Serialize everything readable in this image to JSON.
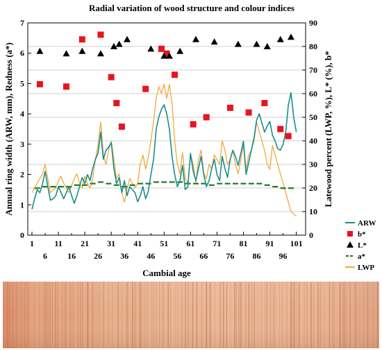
{
  "chart_data": {
    "type": "line",
    "title": "Radial variation of wood structure and colour indices",
    "xlabel": "Cambial age",
    "ylabel_left": "Annual ring width (ARW, mm), Redness (a*)",
    "ylabel_right": "Latewood percent (LWP, %), L* (%), b*",
    "xlim": [
      1,
      104
    ],
    "ylim_left": [
      0,
      7
    ],
    "ylim_right": [
      0,
      90
    ],
    "x_ticks_top": [
      1,
      11,
      21,
      31,
      41,
      51,
      61,
      71,
      81,
      91,
      101
    ],
    "x_ticks_bottom": [
      6,
      16,
      26,
      36,
      46,
      56,
      66,
      76,
      86,
      96
    ],
    "y_ticks_left": [
      0,
      1,
      2,
      3,
      4,
      5,
      6,
      7
    ],
    "y_ticks_right": [
      0,
      10,
      20,
      30,
      40,
      50,
      60,
      70,
      80,
      90
    ],
    "grid": "horizontal",
    "legend_position": "right",
    "series": [
      {
        "name": "ARW",
        "axis": "left",
        "style": "line",
        "color": "#1a8c8c",
        "x": [
          1,
          2,
          3,
          4,
          5,
          6,
          7,
          8,
          9,
          10,
          11,
          12,
          13,
          14,
          15,
          16,
          17,
          18,
          19,
          20,
          21,
          22,
          23,
          24,
          25,
          26,
          27,
          28,
          29,
          30,
          31,
          32,
          33,
          34,
          35,
          36,
          37,
          38,
          39,
          40,
          41,
          42,
          43,
          44,
          45,
          46,
          47,
          48,
          49,
          50,
          51,
          52,
          53,
          54,
          55,
          56,
          57,
          58,
          59,
          60,
          61,
          62,
          63,
          64,
          65,
          66,
          67,
          68,
          69,
          70,
          71,
          72,
          73,
          74,
          75,
          76,
          77,
          78,
          79,
          80,
          81,
          82,
          83,
          84,
          85,
          86,
          87,
          88,
          89,
          90,
          91,
          92,
          93,
          94,
          95,
          96,
          97,
          98,
          99,
          100,
          101
        ],
        "values": [
          0.85,
          1.2,
          1.5,
          1.4,
          1.7,
          2.1,
          1.6,
          1.15,
          1.2,
          1.3,
          1.6,
          1.4,
          1.2,
          1.4,
          1.6,
          1.3,
          1.05,
          1.3,
          1.6,
          1.9,
          1.7,
          2.0,
          1.8,
          2.2,
          2.5,
          2.7,
          3.4,
          2.5,
          2.8,
          2.9,
          3.05,
          2.2,
          1.7,
          1.9,
          1.4,
          1.8,
          1.3,
          1.6,
          1.5,
          1.4,
          1.1,
          1.3,
          1.6,
          1.2,
          1.45,
          2.0,
          2.5,
          3.5,
          3.9,
          4.15,
          4.3,
          4.0,
          3.5,
          2.6,
          2.0,
          1.6,
          1.8,
          2.3,
          1.5,
          1.6,
          2.7,
          2.1,
          1.8,
          2.2,
          2.6,
          2.0,
          1.6,
          1.8,
          2.2,
          2.5,
          2.0,
          1.8,
          2.6,
          2.2,
          1.9,
          2.5,
          2.8,
          2.6,
          2.3,
          2.7,
          3.1,
          2.0,
          2.4,
          2.8,
          3.2,
          3.8,
          4.0,
          3.7,
          3.4,
          3.6,
          3.75,
          3.3,
          3.1,
          2.85,
          2.8,
          3.0,
          3.4,
          4.3,
          4.7,
          3.9,
          3.4
        ]
      },
      {
        "name": "b*",
        "axis": "right",
        "style": "square",
        "color": "#e8141e",
        "x": [
          4,
          14,
          20,
          27,
          31,
          33,
          35,
          44,
          50,
          52,
          55,
          62,
          67,
          76,
          83,
          89,
          95,
          98
        ],
        "values": [
          64,
          63,
          83,
          85,
          67,
          56,
          46,
          62,
          79,
          77,
          68,
          47,
          50,
          54,
          52,
          56,
          45,
          42
        ]
      },
      {
        "name": "L*",
        "axis": "right",
        "style": "triangle",
        "color": "#000000",
        "x": [
          4,
          14,
          20,
          27,
          32,
          34,
          37,
          46,
          51,
          53,
          57,
          63,
          70,
          79,
          86,
          90,
          95,
          99
        ],
        "values": [
          78,
          77,
          78,
          77,
          80,
          81,
          83,
          79,
          76,
          76,
          78,
          83,
          82,
          81,
          81,
          80,
          83,
          84
        ]
      },
      {
        "name": "a*",
        "axis": "left",
        "style": "dash",
        "color": "#1e7a1e",
        "x": [
          3,
          6,
          9,
          12,
          15,
          18,
          21,
          24,
          27,
          30,
          33,
          36,
          39,
          42,
          45,
          48,
          51,
          54,
          57,
          60,
          63,
          66,
          69,
          72,
          75,
          78,
          81,
          84,
          87,
          90,
          93,
          96,
          99
        ],
        "values": [
          1.55,
          1.6,
          1.6,
          1.6,
          1.6,
          1.65,
          1.65,
          1.7,
          1.75,
          1.7,
          1.65,
          1.6,
          1.65,
          1.7,
          1.7,
          1.75,
          1.75,
          1.75,
          1.75,
          1.7,
          1.7,
          1.7,
          1.65,
          1.7,
          1.7,
          1.7,
          1.7,
          1.7,
          1.7,
          1.65,
          1.6,
          1.55,
          1.55
        ]
      },
      {
        "name": "LWP",
        "axis": "right",
        "style": "line",
        "color": "#f2a93a",
        "x": [
          1,
          2,
          3,
          4,
          5,
          6,
          7,
          8,
          9,
          10,
          11,
          12,
          13,
          14,
          15,
          16,
          17,
          18,
          19,
          20,
          21,
          22,
          23,
          24,
          25,
          26,
          27,
          28,
          29,
          30,
          31,
          32,
          33,
          34,
          35,
          36,
          37,
          38,
          39,
          40,
          41,
          42,
          43,
          44,
          45,
          46,
          47,
          48,
          49,
          50,
          51,
          52,
          53,
          54,
          55,
          56,
          57,
          58,
          59,
          60,
          61,
          62,
          63,
          64,
          65,
          66,
          67,
          68,
          69,
          70,
          71,
          72,
          73,
          74,
          75,
          76,
          77,
          78,
          79,
          80,
          81,
          82,
          83,
          84,
          85,
          86,
          87,
          88,
          89,
          90,
          91,
          92,
          93,
          94,
          95,
          96,
          97,
          98,
          99,
          100,
          101
        ],
        "values": [
          18,
          20,
          22,
          24,
          26,
          30,
          24,
          18,
          19,
          20,
          23,
          25,
          22,
          20,
          18,
          21,
          24,
          26,
          22,
          20,
          25,
          22,
          20,
          24,
          32,
          38,
          48,
          34,
          30,
          36,
          40,
          32,
          24,
          26,
          18,
          14,
          20,
          24,
          22,
          20,
          22,
          30,
          34,
          28,
          33,
          40,
          48,
          58,
          63,
          60,
          64,
          58,
          64,
          56,
          40,
          30,
          26,
          35,
          24,
          22,
          34,
          30,
          22,
          32,
          36,
          26,
          24,
          30,
          28,
          34,
          32,
          30,
          40,
          36,
          30,
          32,
          36,
          30,
          26,
          32,
          38,
          28,
          34,
          36,
          40,
          48,
          44,
          40,
          36,
          30,
          28,
          38,
          34,
          30,
          26,
          22,
          18,
          14,
          10,
          9,
          8
        ]
      }
    ]
  }
}
